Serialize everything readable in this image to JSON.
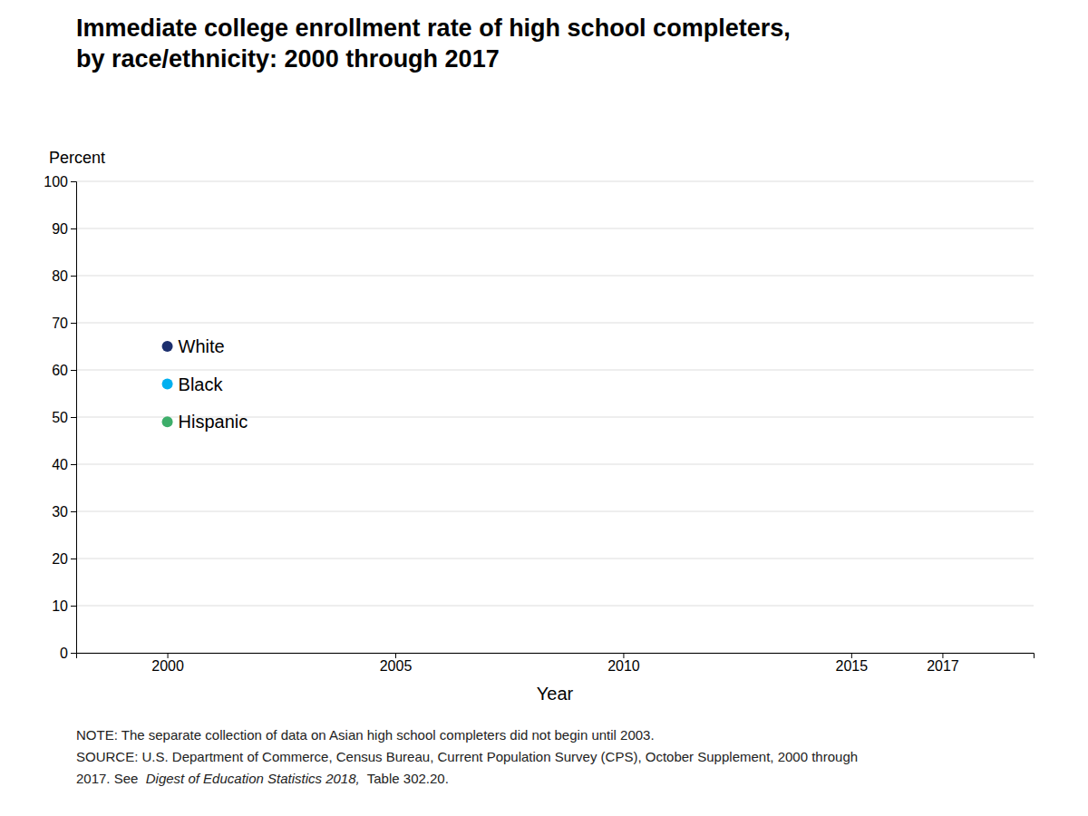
{
  "chart_data": {
    "type": "scatter",
    "title": [
      "Immediate college enrollment rate of high school completers,",
      "by race/ethnicity: 2000 through 2017"
    ],
    "x_label": "Year",
    "y_label": "Percent",
    "xlim": [
      1998,
      2019
    ],
    "xticks": [
      2000,
      2005,
      2010,
      2015,
      2017
    ],
    "ylim": [
      0,
      100
    ],
    "yticks": [
      0,
      10,
      20,
      30,
      40,
      50,
      60,
      70,
      80,
      90,
      100
    ],
    "grid": "y",
    "series": [
      {
        "name": "White",
        "color": "#1c2f6e",
        "x": [
          2000
        ],
        "values": [
          65
        ]
      },
      {
        "name": "Black",
        "color": "#00b0f0",
        "x": [
          2000
        ],
        "values": [
          57
        ]
      },
      {
        "name": "Hispanic",
        "color": "#3dae6a",
        "x": [
          2000
        ],
        "values": [
          49
        ]
      }
    ],
    "notes": [
      "NOTE: The separate collection of data on Asian high school completers did not begin until 2003.",
      "SOURCE: U.S. Department of Commerce, Census Bureau, Current Population Survey (CPS), October Supplement, 2000 through",
      [
        "2017. See  ",
        "Digest of Education Statistics 2018,",
        "  Table 302.20."
      ]
    ]
  }
}
